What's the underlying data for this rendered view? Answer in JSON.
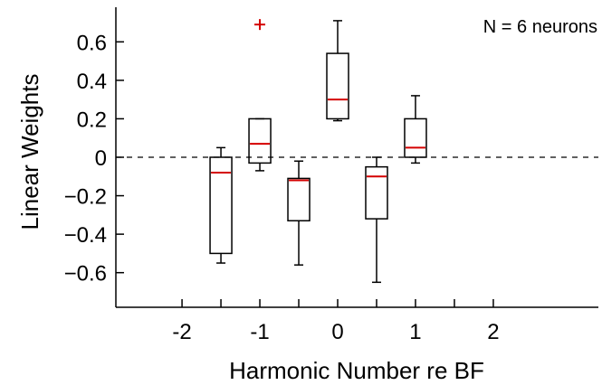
{
  "chart_data": {
    "type": "boxplot",
    "xlabel": "Harmonic Number re BF",
    "ylabel": "Linear Weights",
    "annotation": "N = 6 neurons",
    "xlim": [
      -2.85,
      3.35
    ],
    "ylim": [
      -0.78,
      0.78
    ],
    "x_ticks": [
      {
        "value": -2,
        "label": "-2"
      },
      {
        "value": -1,
        "label": "-1"
      },
      {
        "value": 0,
        "label": "0"
      },
      {
        "value": 1,
        "label": "1"
      },
      {
        "value": 2,
        "label": "2"
      }
    ],
    "x_minor_ticks": [
      -1.5,
      -0.5,
      0.5,
      1.5
    ],
    "y_ticks": [
      {
        "value": 0.6,
        "label": "0.6"
      },
      {
        "value": 0.4,
        "label": "0.4"
      },
      {
        "value": 0.2,
        "label": "0.2"
      },
      {
        "value": 0,
        "label": "0"
      },
      {
        "value": -0.2,
        "label": "−0.2"
      },
      {
        "value": -0.4,
        "label": "−0.4"
      },
      {
        "value": -0.6,
        "label": "−0.6"
      }
    ],
    "reference_line": 0,
    "boxes": [
      {
        "x": -1.5,
        "whisker_low": -0.55,
        "q1": -0.5,
        "median": -0.08,
        "q3": 0.0,
        "whisker_high": 0.05,
        "outliers": []
      },
      {
        "x": -1.0,
        "whisker_low": -0.07,
        "q1": -0.03,
        "median": 0.07,
        "q3": 0.2,
        "whisker_high": 0.2,
        "outliers": [
          0.69
        ]
      },
      {
        "x": -0.5,
        "whisker_low": -0.56,
        "q1": -0.33,
        "median": -0.12,
        "q3": -0.11,
        "whisker_high": -0.02,
        "outliers": []
      },
      {
        "x": 0.0,
        "whisker_low": 0.19,
        "q1": 0.2,
        "median": 0.3,
        "q3": 0.54,
        "whisker_high": 0.71,
        "outliers": []
      },
      {
        "x": 0.5,
        "whisker_low": -0.65,
        "q1": -0.32,
        "median": -0.1,
        "q3": -0.05,
        "whisker_high": 0.0,
        "outliers": []
      },
      {
        "x": 1.0,
        "whisker_low": -0.03,
        "q1": 0.0,
        "median": 0.05,
        "q3": 0.2,
        "whisker_high": 0.32,
        "outliers": []
      }
    ],
    "colors": {
      "box": "#000000",
      "median": "#d40000",
      "outlier": "#d40000",
      "axis": "#000000"
    }
  }
}
